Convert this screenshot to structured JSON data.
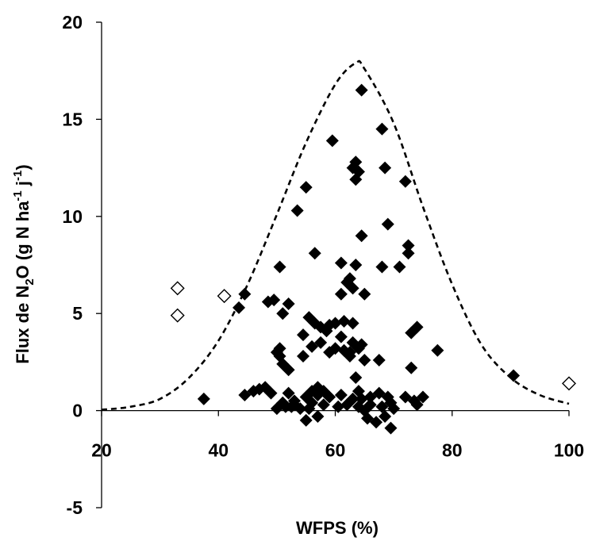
{
  "chart_data": {
    "type": "scatter",
    "title": "",
    "xlabel": "WFPS (%)",
    "ylabel": {
      "base": "Flux de N",
      "sub": "2",
      "mid": "O (g N ha",
      "sup1": "-1",
      "mid2": " j",
      "sup2": "-1",
      "end": ")"
    },
    "xlim": [
      20,
      100
    ],
    "ylim": [
      -5,
      20
    ],
    "x_ticks": [
      20,
      40,
      60,
      80,
      100
    ],
    "y_ticks": [
      -5,
      0,
      5,
      10,
      15,
      20
    ],
    "x_tick_labels": [
      "20",
      "40",
      "60",
      "80",
      "100"
    ],
    "y_tick_labels": [
      "-5",
      "0",
      "5",
      "10",
      "15",
      "20"
    ],
    "grid": false,
    "legend": "none",
    "colors": {
      "filled": "#000000",
      "open_stroke": "#000000",
      "open_fill": "#ffffff",
      "curve": "#000000"
    },
    "series": [
      {
        "marker": "filled-diamond",
        "points": [
          [
            37.5,
            0.6
          ],
          [
            43.5,
            5.3
          ],
          [
            44.5,
            6.0
          ],
          [
            44.5,
            0.8
          ],
          [
            46,
            1.0
          ],
          [
            47,
            1.1
          ],
          [
            48,
            1.2
          ],
          [
            48.5,
            5.6
          ],
          [
            49,
            0.9
          ],
          [
            49.5,
            5.7
          ],
          [
            50,
            0.1
          ],
          [
            50,
            3.0
          ],
          [
            50.5,
            7.4
          ],
          [
            50.5,
            3.2
          ],
          [
            50.5,
            2.8
          ],
          [
            51,
            2.4
          ],
          [
            51,
            5.0
          ],
          [
            51,
            0.4
          ],
          [
            51.5,
            0.2
          ],
          [
            52,
            5.5
          ],
          [
            52,
            0.9
          ],
          [
            52,
            2.1
          ],
          [
            52.5,
            0.2
          ],
          [
            53,
            0.5
          ],
          [
            53,
            0.3
          ],
          [
            53.5,
            10.3
          ],
          [
            54,
            0.1
          ],
          [
            54.5,
            3.9
          ],
          [
            54.5,
            2.8
          ],
          [
            55,
            11.5
          ],
          [
            55,
            -0.5
          ],
          [
            55,
            0.7
          ],
          [
            55.5,
            0.1
          ],
          [
            55.5,
            4.8
          ],
          [
            56,
            3.3
          ],
          [
            56,
            1.0
          ],
          [
            56,
            0.4
          ],
          [
            56.5,
            8.1
          ],
          [
            56.5,
            4.5
          ],
          [
            57,
            1.2
          ],
          [
            57,
            -0.3
          ],
          [
            57,
            0.8
          ],
          [
            57.5,
            4.3
          ],
          [
            57.5,
            3.5
          ],
          [
            58,
            1.0
          ],
          [
            58,
            0.3
          ],
          [
            58.5,
            4.1
          ],
          [
            59,
            4.4
          ],
          [
            59,
            3.0
          ],
          [
            59,
            0.7
          ],
          [
            59.5,
            13.9
          ],
          [
            60,
            4.5
          ],
          [
            60,
            3.2
          ],
          [
            60.5,
            0.2
          ],
          [
            61,
            3.8
          ],
          [
            61,
            7.6
          ],
          [
            61,
            6.0
          ],
          [
            61,
            0.8
          ],
          [
            61.5,
            4.6
          ],
          [
            61.5,
            3.1
          ],
          [
            62,
            6.6
          ],
          [
            62,
            0.3
          ],
          [
            62.5,
            6.8
          ],
          [
            62.5,
            3.0
          ],
          [
            62.5,
            2.8
          ],
          [
            63,
            12.5
          ],
          [
            63,
            6.3
          ],
          [
            63,
            4.5
          ],
          [
            63,
            3.5
          ],
          [
            63,
            0.6
          ],
          [
            63.5,
            12.8
          ],
          [
            63.5,
            11.9
          ],
          [
            63.5,
            7.5
          ],
          [
            63.5,
            1.7
          ],
          [
            64,
            12.3
          ],
          [
            64,
            3.2
          ],
          [
            64,
            1.0
          ],
          [
            64,
            0.2
          ],
          [
            64.5,
            16.5
          ],
          [
            64.5,
            9.0
          ],
          [
            64.5,
            3.4
          ],
          [
            64.5,
            0.6
          ],
          [
            65,
            6.0
          ],
          [
            65,
            2.6
          ],
          [
            65,
            0.0
          ],
          [
            65.5,
            -0.4
          ],
          [
            66,
            0.7
          ],
          [
            66,
            0.3
          ],
          [
            67,
            -0.6
          ],
          [
            67.5,
            2.6
          ],
          [
            67.5,
            0.9
          ],
          [
            68,
            14.5
          ],
          [
            68,
            7.4
          ],
          [
            68,
            0.2
          ],
          [
            68.5,
            12.5
          ],
          [
            68.5,
            -0.3
          ],
          [
            69,
            9.6
          ],
          [
            69,
            0.7
          ],
          [
            69.5,
            0.4
          ],
          [
            69.5,
            -0.9
          ],
          [
            70,
            0.1
          ],
          [
            71,
            7.4
          ],
          [
            72,
            11.8
          ],
          [
            72,
            0.7
          ],
          [
            72.5,
            8.1
          ],
          [
            72.5,
            8.5
          ],
          [
            73,
            4.0
          ],
          [
            73,
            2.2
          ],
          [
            73.5,
            0.5
          ],
          [
            74,
            4.3
          ],
          [
            74,
            0.3
          ],
          [
            75,
            0.7
          ],
          [
            77.5,
            3.1
          ],
          [
            90.5,
            1.8
          ]
        ]
      },
      {
        "marker": "open-diamond",
        "points": [
          [
            33,
            6.3
          ],
          [
            33,
            4.9
          ],
          [
            41,
            5.9
          ],
          [
            100,
            1.4
          ]
        ]
      },
      {
        "marker": "dashed-curve",
        "peak": [
          63.5,
          17.9
        ],
        "points": [
          [
            20,
            0.04
          ],
          [
            25,
            0.2
          ],
          [
            30,
            0.6
          ],
          [
            35,
            1.7
          ],
          [
            40,
            3.6
          ],
          [
            45,
            6.5
          ],
          [
            50,
            10.1
          ],
          [
            55,
            13.8
          ],
          [
            60,
            16.8
          ],
          [
            63.5,
            17.9
          ],
          [
            65,
            17.6
          ],
          [
            70,
            14.8
          ],
          [
            75,
            10.5
          ],
          [
            80,
            6.5
          ],
          [
            85,
            3.4
          ],
          [
            90,
            1.7
          ],
          [
            95,
            0.8
          ],
          [
            100,
            0.35
          ]
        ]
      }
    ]
  }
}
